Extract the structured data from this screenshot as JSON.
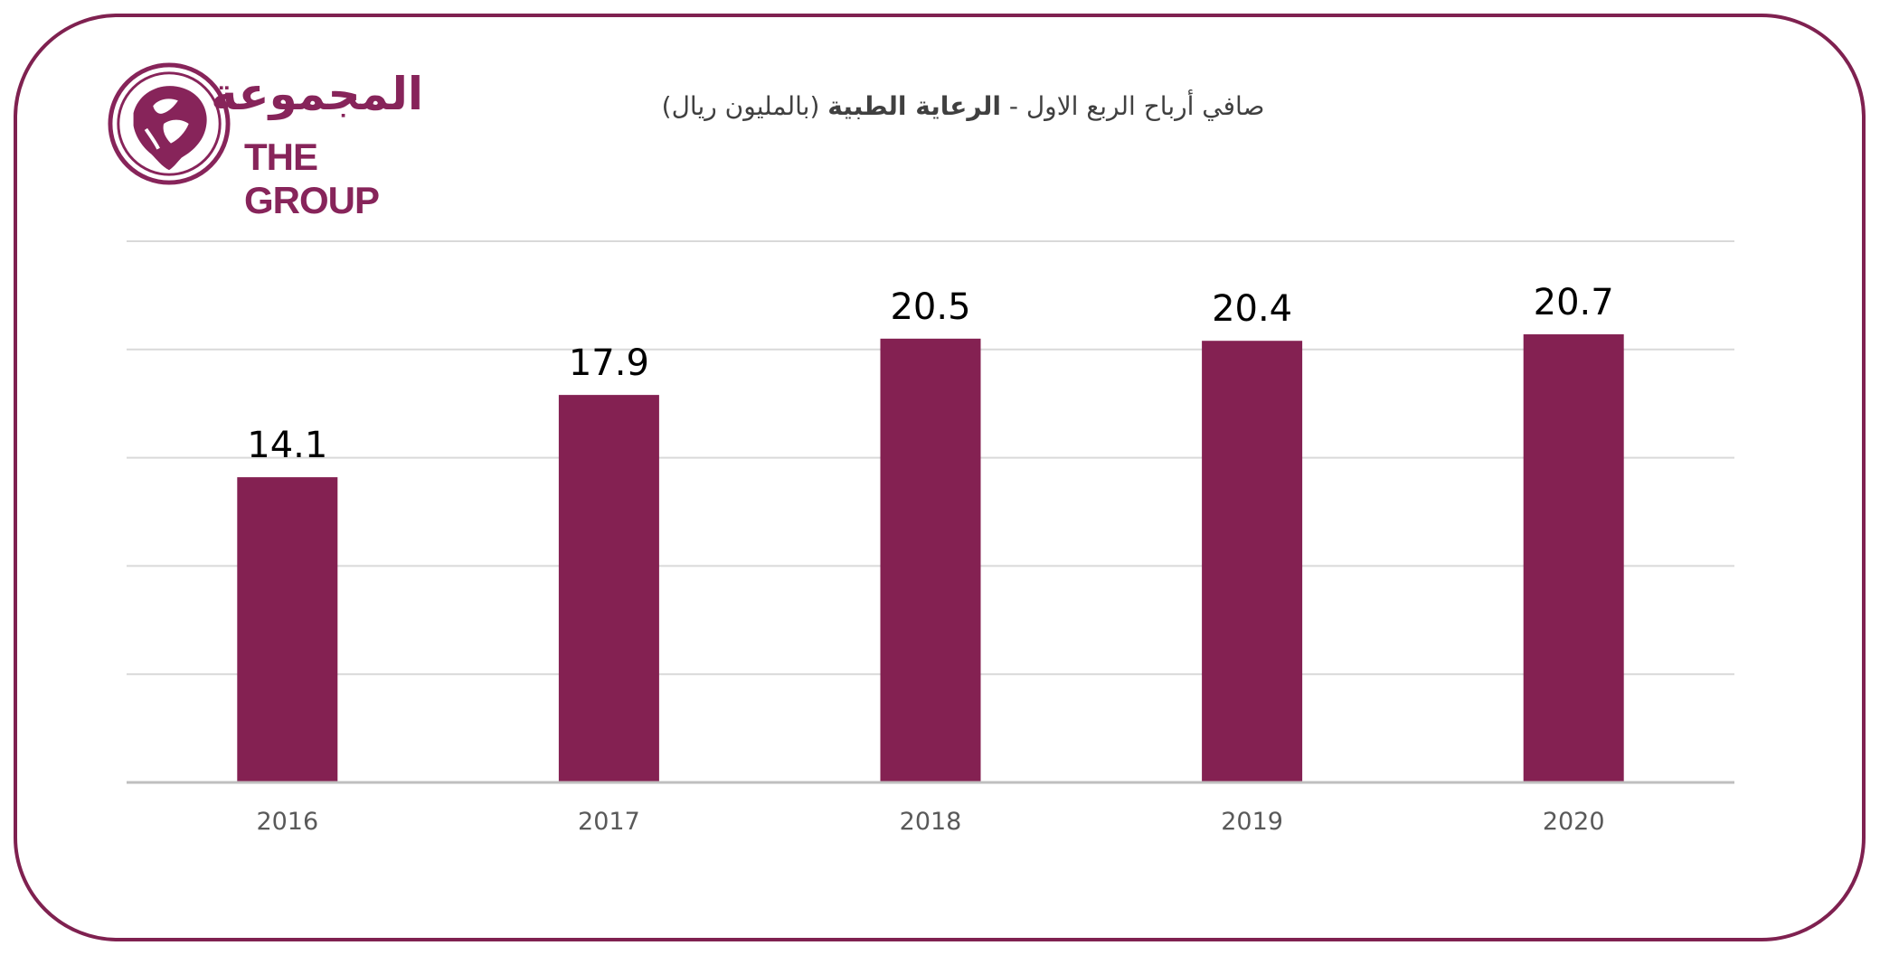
{
  "logo": {
    "arabic_text": "المجموعة",
    "english_text": "THE GROUP",
    "emblem_icon": "falcon-emblem-icon"
  },
  "title": {
    "prefix": "صافي أرباح الربع الاول - ",
    "bold": "الرعاية الطبية",
    "suffix": " (بالمليون ريال)"
  },
  "colors": {
    "brand": "#87245a",
    "bar": "#842152",
    "border": "#7f2150",
    "grid": "#d9d9d9",
    "axis": "#bfbfbf"
  },
  "chart_data": {
    "type": "bar",
    "categories": [
      "2016",
      "2017",
      "2018",
      "2019",
      "2020"
    ],
    "values": [
      14.1,
      17.9,
      20.5,
      20.4,
      20.7
    ],
    "value_labels": [
      "14.1",
      "17.9",
      "20.5",
      "20.4",
      "20.7"
    ],
    "title": "صافي أرباح الربع الاول - الرعاية الطبية (بالمليون ريال)",
    "xlabel": "",
    "ylabel": "",
    "ylim": [
      0,
      25
    ],
    "grid": true,
    "legend": "none"
  }
}
